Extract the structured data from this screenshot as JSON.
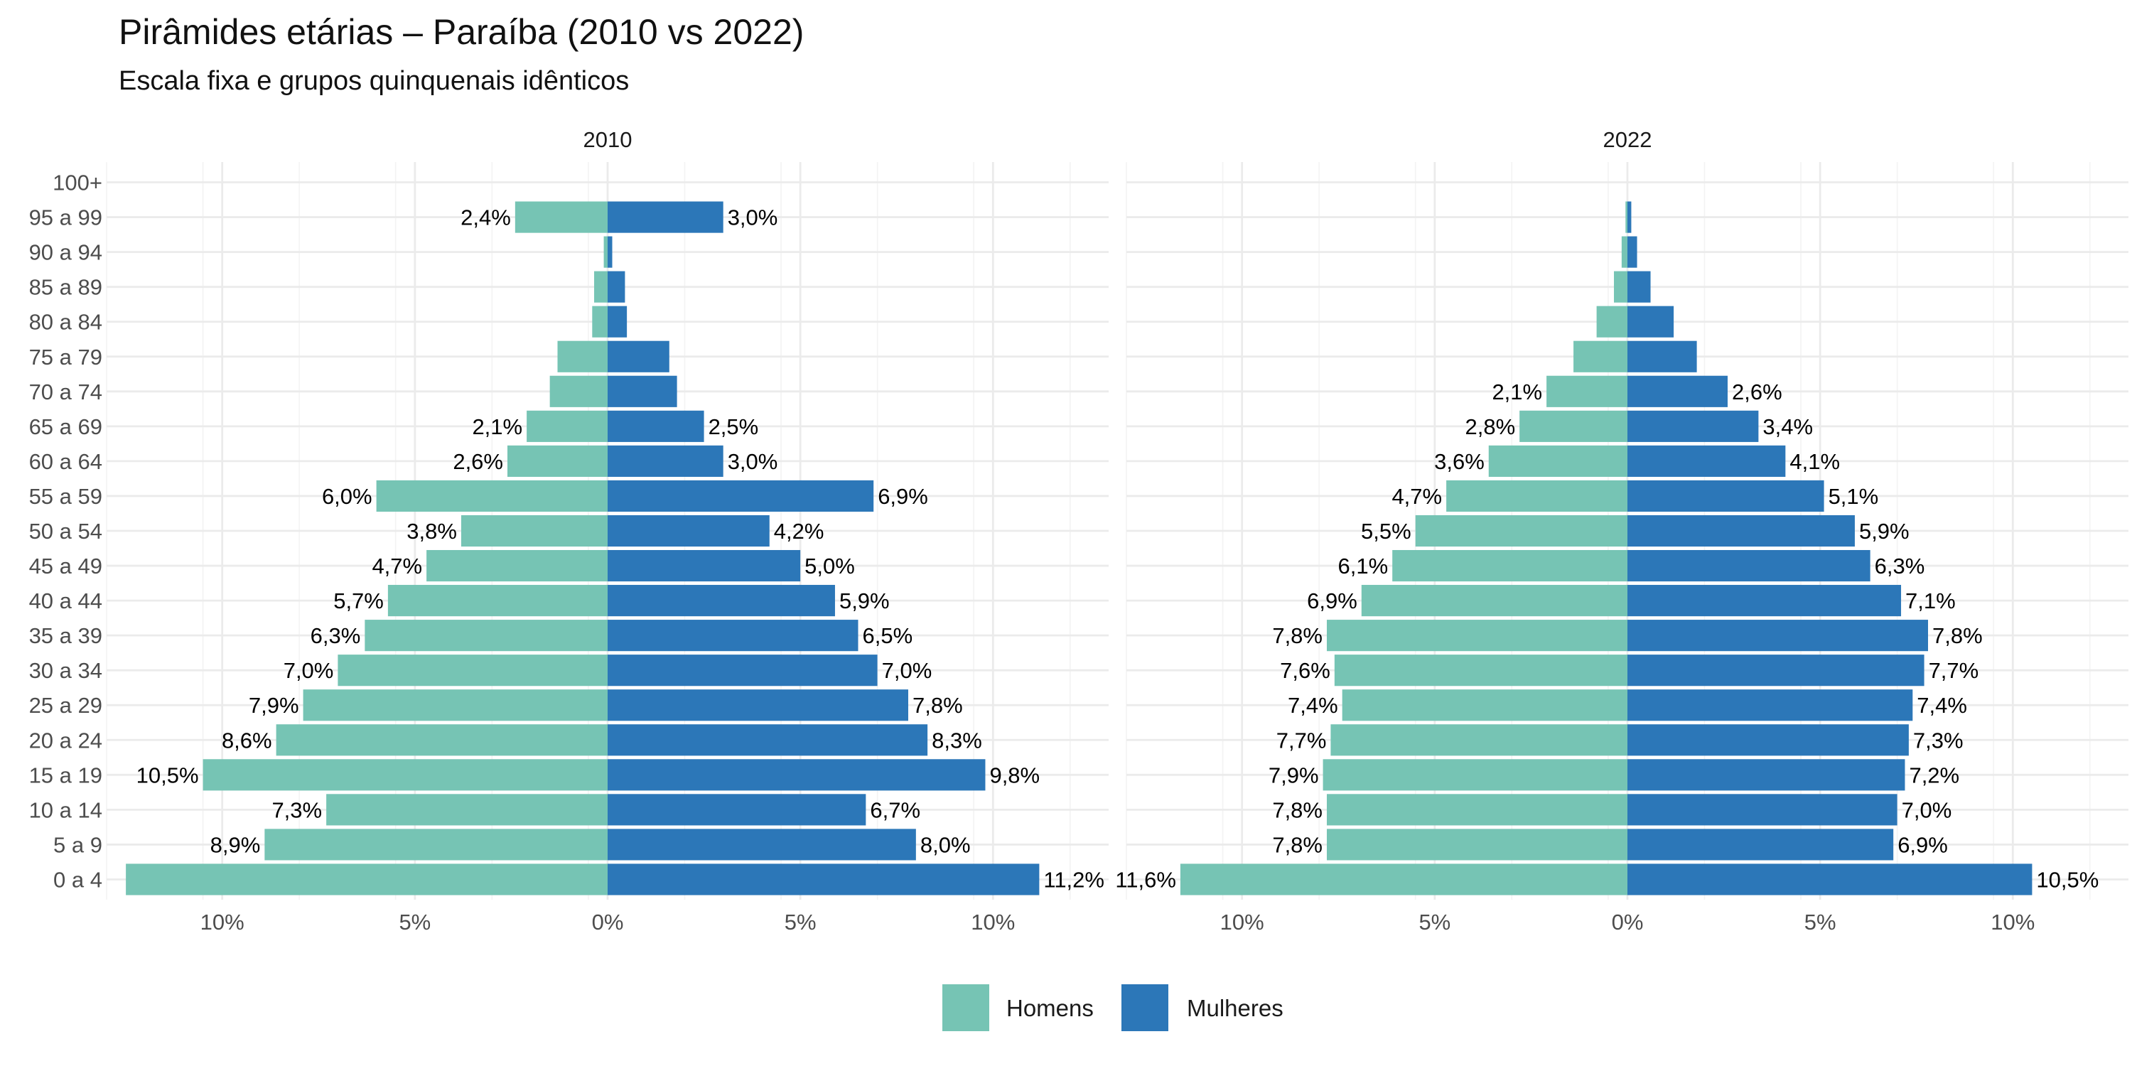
{
  "chart_data": {
    "type": "bar",
    "orientation": "horizontal",
    "title": "Pirâmides etárias – Paraíba (2010 vs 2022)",
    "subtitle": "Escala fixa e grupos quinquenais idênticos",
    "categories": [
      "0 a 4",
      "5 a 9",
      "10 a 14",
      "15 a 19",
      "20 a 24",
      "25 a 29",
      "30 a 34",
      "35 a 39",
      "40 a 44",
      "45 a 49",
      "50 a 54",
      "55 a 59",
      "60 a 64",
      "65 a 69",
      "70 a 74",
      "75 a 79",
      "80 a 84",
      "85 a 89",
      "90 a 94",
      "95 a 99",
      "100+"
    ],
    "xlim": [
      -13,
      13
    ],
    "x_ticks": [
      -10,
      -5,
      0,
      5,
      10
    ],
    "x_tick_labels": [
      "10%",
      "5%",
      "0%",
      "5%",
      "10%"
    ],
    "grid": true,
    "legend_position": "bottom",
    "colors": {
      "Homens": "#76c4b4",
      "Mulheres": "#2c77b8"
    },
    "panels": [
      {
        "strip": "2010",
        "series": [
          {
            "name": "Homens",
            "values": [
              12.5,
              8.9,
              7.3,
              10.5,
              8.6,
              7.9,
              7.0,
              6.3,
              5.7,
              4.7,
              3.8,
              6.0,
              2.6,
              2.1,
              1.5,
              1.3,
              0.4,
              0.35,
              0.1,
              2.4,
              0
            ],
            "labels": [
              "",
              "8,9%",
              "7,3%",
              "10,5%",
              "8,6%",
              "7,9%",
              "7,0%",
              "6,3%",
              "5,7%",
              "4,7%",
              "3,8%",
              "6,0%",
              "2,6%",
              "2,1%",
              "",
              "",
              "",
              "",
              "",
              "2,4%",
              ""
            ]
          },
          {
            "name": "Mulheres",
            "values": [
              11.2,
              8.0,
              6.7,
              9.8,
              8.3,
              7.8,
              7.0,
              6.5,
              5.9,
              5.0,
              4.2,
              6.9,
              3.0,
              2.5,
              1.8,
              1.6,
              0.5,
              0.45,
              0.12,
              3.0,
              0
            ],
            "labels": [
              "11,2%",
              "8,0%",
              "6,7%",
              "9,8%",
              "8,3%",
              "7,8%",
              "7,0%",
              "6,5%",
              "5,9%",
              "5,0%",
              "4,2%",
              "6,9%",
              "3,0%",
              "2,5%",
              "",
              "",
              "",
              "",
              "",
              "3,0%",
              ""
            ]
          }
        ]
      },
      {
        "strip": "2022",
        "series": [
          {
            "name": "Homens",
            "values": [
              11.6,
              7.8,
              7.8,
              7.9,
              7.7,
              7.4,
              7.6,
              7.8,
              6.9,
              6.1,
              5.5,
              4.7,
              3.6,
              2.8,
              2.1,
              1.4,
              0.8,
              0.35,
              0.15,
              0.05,
              0
            ],
            "labels": [
              "11,6%",
              "7,8%",
              "7,8%",
              "7,9%",
              "7,7%",
              "7,4%",
              "7,6%",
              "7,8%",
              "6,9%",
              "6,1%",
              "5,5%",
              "4,7%",
              "3,6%",
              "2,8%",
              "2,1%",
              "",
              "",
              "",
              "",
              "",
              ""
            ]
          },
          {
            "name": "Mulheres",
            "values": [
              10.5,
              6.9,
              7.0,
              7.2,
              7.3,
              7.4,
              7.7,
              7.8,
              7.1,
              6.3,
              5.9,
              5.1,
              4.1,
              3.4,
              2.6,
              1.8,
              1.2,
              0.6,
              0.25,
              0.1,
              0
            ],
            "labels": [
              "10,5%",
              "6,9%",
              "7,0%",
              "7,2%",
              "7,3%",
              "7,4%",
              "7,7%",
              "7,8%",
              "7,1%",
              "6,3%",
              "5,9%",
              "5,1%",
              "4,1%",
              "3,4%",
              "2,6%",
              "",
              "",
              "",
              "",
              "",
              ""
            ]
          }
        ]
      }
    ]
  }
}
